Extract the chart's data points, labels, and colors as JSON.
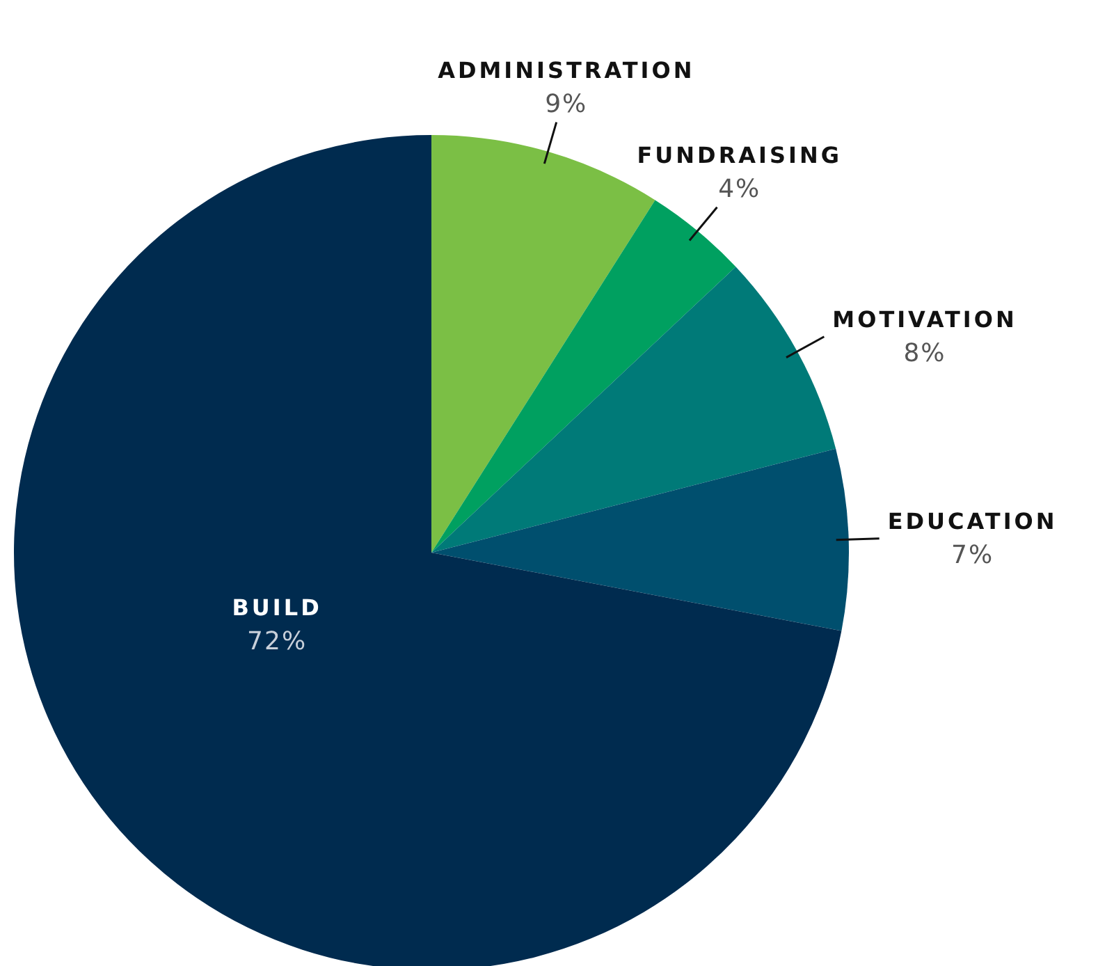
{
  "chart_data": {
    "type": "pie",
    "categories": [
      "ADMINISTRATION",
      "FUNDRAISING",
      "MOTIVATION",
      "EDUCATION",
      "BUILD"
    ],
    "values": [
      9,
      4,
      8,
      7,
      72
    ],
    "value_labels": [
      "9%",
      "4%",
      "8%",
      "7%",
      "72%"
    ],
    "colors": [
      "#7bbf45",
      "#00a060",
      "#007a78",
      "#004f6e",
      "#002b4f"
    ],
    "legend": false
  }
}
